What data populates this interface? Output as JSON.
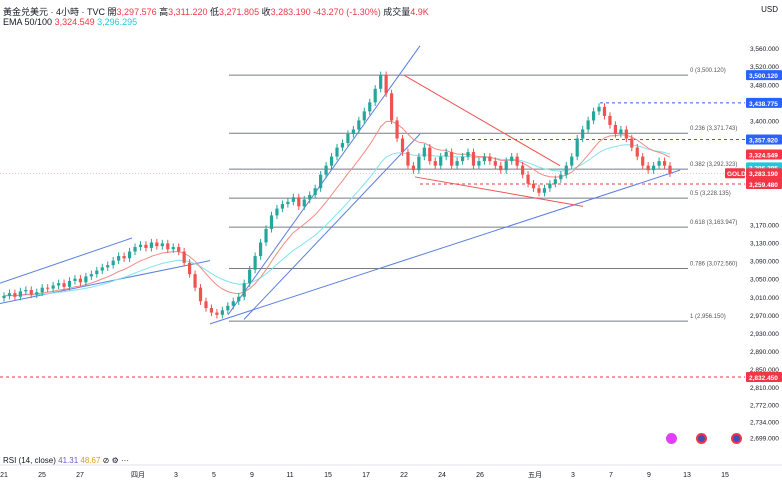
{
  "header": {
    "title": "黃金兑美元 · 4小時 · TVC",
    "open_label": "開",
    "open": "3,297.576",
    "high_label": "高",
    "high": "3,311.220",
    "low_label": "低",
    "low": "3,271.805",
    "close_label": "收",
    "close": "3,283.190",
    "change": "-43.270 (-1.30%)",
    "volume_label": "成交量",
    "volume": "4.9K"
  },
  "ema": {
    "label": "EMA 50/100",
    "ema50": "3,324.549",
    "ema100": "3,296.295"
  },
  "currency": "USD",
  "rsi": {
    "label": "RSI (14, close)",
    "value1": "41.31",
    "value2": "48.67"
  },
  "colors": {
    "up": "#26a69a",
    "down": "#ef5350",
    "ema50": "#f28b82",
    "ema100": "#7fe3ef",
    "trend": "#5b7fe0",
    "fib": "#787b86",
    "accent_blue": "#2962ff",
    "red": "#f23645"
  },
  "chart_data": {
    "type": "candlestick",
    "symbol": "GOLD",
    "ylim": [
      2660,
      3600
    ],
    "y_ticks": [
      "3,560.000",
      "3,520.000",
      "3,480.000",
      "3,440.000",
      "3,400.000",
      "3,360.000",
      "3,320.000",
      "3,280.000",
      "3,170.000",
      "3,130.000",
      "3,090.000",
      "3,050.000",
      "3,010.000",
      "2,970.000",
      "2,930.000",
      "2,890.000",
      "2,850.000",
      "2,810.000",
      "2,772.000",
      "2,734.000",
      "2,699.000"
    ],
    "x_labels": [
      "21",
      "25",
      "27",
      "四月",
      "3",
      "5",
      "9",
      "11",
      "15",
      "17",
      "22",
      "24",
      "26",
      "五月",
      "3",
      "7",
      "9",
      "13",
      "15"
    ],
    "fib_levels": [
      {
        "label": "0 (3,500.120)",
        "value": 3500.12
      },
      {
        "label": "0.236 (3,371.743)",
        "value": 3371.743
      },
      {
        "label": "0.382 (3,292.323)",
        "value": 3292.323
      },
      {
        "label": "0.5 (3,228.135)",
        "value": 3228.135
      },
      {
        "label": "0.618 (3,163.947)",
        "value": 3163.947
      },
      {
        "label": "0.786 (3,072.560)",
        "value": 3072.56
      },
      {
        "label": "1 (2,956.150)",
        "value": 2956.15
      }
    ],
    "price_tags": [
      {
        "text": "3,500.120",
        "color": "#2962ff"
      },
      {
        "text": "3,438.775",
        "color": "#2962ff"
      },
      {
        "text": "3,357.920",
        "color": "#2962ff"
      },
      {
        "text": "3,324.549",
        "color": "#f23645"
      },
      {
        "text": "3,296.295",
        "color": "#26c6da"
      },
      {
        "text": "3,283.190",
        "color": "#f23645"
      },
      {
        "text": "03:50:19",
        "color": "#f23645"
      },
      {
        "text": "3,259.480",
        "color": "#f23645"
      },
      {
        "text": "2,832.450",
        "color": "#f23645"
      }
    ],
    "gold_label": "GOLD",
    "close_series": [
      3012,
      3018,
      3010,
      3022,
      3025,
      3015,
      3020,
      3030,
      3028,
      3035,
      3040,
      3032,
      3045,
      3050,
      3042,
      3055,
      3060,
      3068,
      3075,
      3080,
      3090,
      3100,
      3095,
      3110,
      3120,
      3125,
      3118,
      3130,
      3122,
      3128,
      3115,
      3120,
      3110,
      3085,
      3060,
      3030,
      3000,
      2985,
      2975,
      2970,
      2980,
      2990,
      3000,
      3010,
      3040,
      3070,
      3100,
      3130,
      3160,
      3190,
      3205,
      3215,
      3220,
      3230,
      3210,
      3225,
      3235,
      3250,
      3280,
      3300,
      3320,
      3340,
      3350,
      3370,
      3380,
      3400,
      3420,
      3440,
      3470,
      3500,
      3460,
      3400,
      3360,
      3330,
      3300,
      3290,
      3320,
      3340,
      3310,
      3300,
      3320,
      3330,
      3300,
      3310,
      3320,
      3330,
      3300,
      3310,
      3320,
      3310,
      3300,
      3290,
      3310,
      3320,
      3300,
      3280,
      3260,
      3250,
      3240,
      3250,
      3260,
      3270,
      3280,
      3300,
      3320,
      3360,
      3380,
      3400,
      3420,
      3430,
      3410,
      3390,
      3370,
      3380,
      3360,
      3340,
      3320,
      3300,
      3290,
      3300,
      3310,
      3300,
      3283.19
    ]
  }
}
